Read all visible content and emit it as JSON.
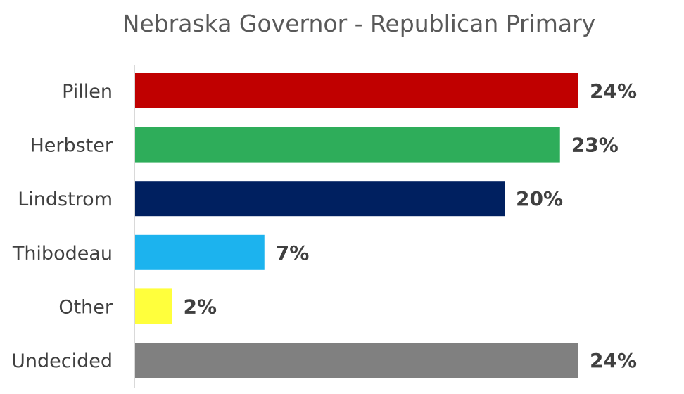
{
  "chart_data": {
    "type": "bar",
    "orientation": "horizontal",
    "title": "Nebraska Governor - Republican Primary",
    "xlabel": "",
    "ylabel": "",
    "categories": [
      "Pillen",
      "Herbster",
      "Lindstrom",
      "Thibodeau",
      "Other",
      "Undecided"
    ],
    "values": [
      24,
      23,
      20,
      7,
      2,
      24
    ],
    "value_labels": [
      "24%",
      "23%",
      "20%",
      "7%",
      "2%",
      "24%"
    ],
    "colors": [
      "#C00000",
      "#2EAD5A",
      "#002060",
      "#1CB3EE",
      "#FFFF3C",
      "#808080"
    ],
    "xlim": [
      0,
      24
    ],
    "grid": false,
    "legend": "none"
  }
}
